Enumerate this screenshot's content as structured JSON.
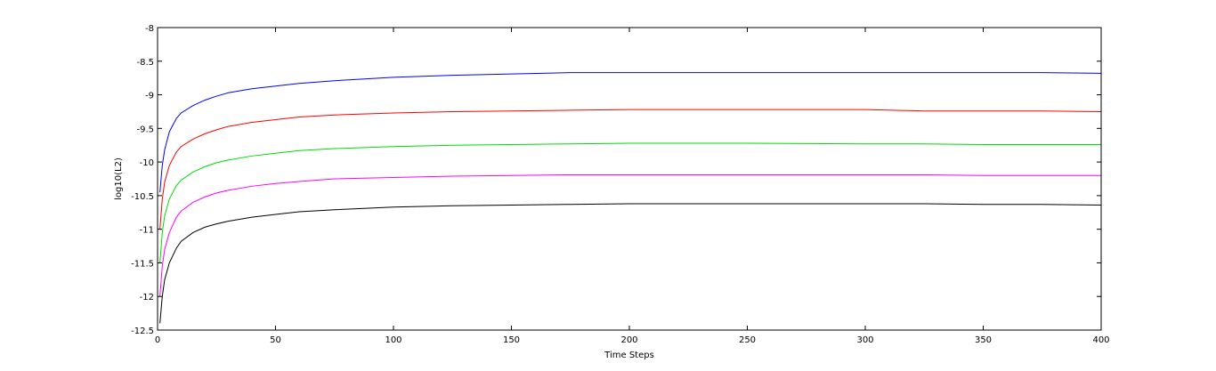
{
  "chart_data": {
    "type": "line",
    "title": "",
    "xlabel": "Time Steps",
    "ylabel": "log10(L2)",
    "xlim": [
      0,
      400
    ],
    "ylim": [
      -12.5,
      -8
    ],
    "xticks": [
      0,
      50,
      100,
      150,
      200,
      250,
      300,
      350,
      400
    ],
    "yticks": [
      -8,
      -8.5,
      -9,
      -9.5,
      -10,
      -10.5,
      -11,
      -11.5,
      -12,
      -12.5
    ],
    "grid": false,
    "legend": "none",
    "x": [
      1,
      2,
      3,
      5,
      8,
      10,
      15,
      20,
      25,
      30,
      40,
      50,
      60,
      75,
      100,
      125,
      150,
      175,
      200,
      250,
      300,
      325,
      350,
      375,
      400
    ],
    "series": [
      {
        "color": "#0000ff",
        "values": [
          -10.45,
          -10.05,
          -9.82,
          -9.55,
          -9.35,
          -9.27,
          -9.16,
          -9.08,
          -9.02,
          -8.97,
          -8.91,
          -8.87,
          -8.83,
          -8.79,
          -8.74,
          -8.71,
          -8.69,
          -8.67,
          -8.67,
          -8.67,
          -8.67,
          -8.67,
          -8.67,
          -8.67,
          -8.68
        ]
      },
      {
        "color": "#ff0000",
        "values": [
          -11.0,
          -10.55,
          -10.3,
          -10.05,
          -9.85,
          -9.77,
          -9.66,
          -9.58,
          -9.52,
          -9.47,
          -9.41,
          -9.37,
          -9.33,
          -9.3,
          -9.27,
          -9.25,
          -9.24,
          -9.23,
          -9.22,
          -9.22,
          -9.22,
          -9.24,
          -9.24,
          -9.24,
          -9.25
        ]
      },
      {
        "color": "#00dd00",
        "values": [
          -11.5,
          -11.05,
          -10.8,
          -10.55,
          -10.35,
          -10.27,
          -10.15,
          -10.07,
          -10.01,
          -9.97,
          -9.91,
          -9.87,
          -9.83,
          -9.8,
          -9.77,
          -9.75,
          -9.74,
          -9.73,
          -9.72,
          -9.72,
          -9.73,
          -9.73,
          -9.74,
          -9.74,
          -9.74
        ]
      },
      {
        "color": "#ff00ff",
        "values": [
          -12.0,
          -11.55,
          -11.3,
          -11.05,
          -10.82,
          -10.73,
          -10.6,
          -10.52,
          -10.46,
          -10.42,
          -10.36,
          -10.32,
          -10.29,
          -10.25,
          -10.23,
          -10.21,
          -10.2,
          -10.19,
          -10.19,
          -10.19,
          -10.19,
          -10.19,
          -10.2,
          -10.2,
          -10.2
        ]
      },
      {
        "color": "#000000",
        "values": [
          -12.4,
          -12.0,
          -11.75,
          -11.5,
          -11.28,
          -11.18,
          -11.05,
          -10.97,
          -10.92,
          -10.88,
          -10.82,
          -10.78,
          -10.74,
          -10.71,
          -10.67,
          -10.65,
          -10.64,
          -10.63,
          -10.62,
          -10.62,
          -10.62,
          -10.62,
          -10.63,
          -10.63,
          -10.64
        ]
      }
    ]
  }
}
